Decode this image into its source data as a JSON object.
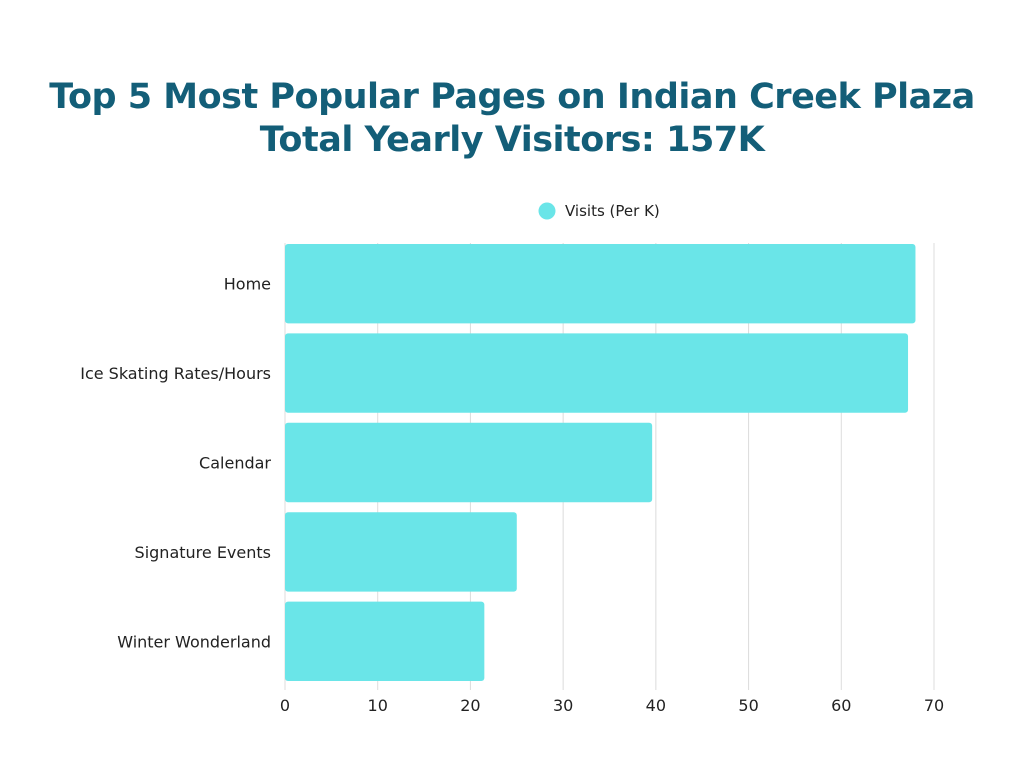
{
  "chart_data": {
    "type": "bar",
    "orientation": "horizontal",
    "title": "Top 5 Most Popular Pages on Indian Creek Plaza",
    "subtitle": "Total Yearly Visitors: 157K",
    "categories": [
      "Home",
      "Ice Skating Rates/Hours",
      "Calendar",
      "Signature Events",
      "Winter Wonderland"
    ],
    "series": [
      {
        "name": "Visits (Per K)",
        "values": [
          68,
          67.2,
          39.6,
          25,
          21.5
        ]
      }
    ],
    "xlabel": "",
    "ylabel": "",
    "xlim": [
      0,
      70
    ],
    "xticks": [
      "0",
      "10",
      "20",
      "30",
      "40",
      "50",
      "60",
      "70"
    ],
    "grid": true,
    "legend": "top-center",
    "colors": {
      "bar": "#6ae5e8",
      "title": "#135e78",
      "grid": "#dcdcdc",
      "text": "#222222"
    }
  }
}
